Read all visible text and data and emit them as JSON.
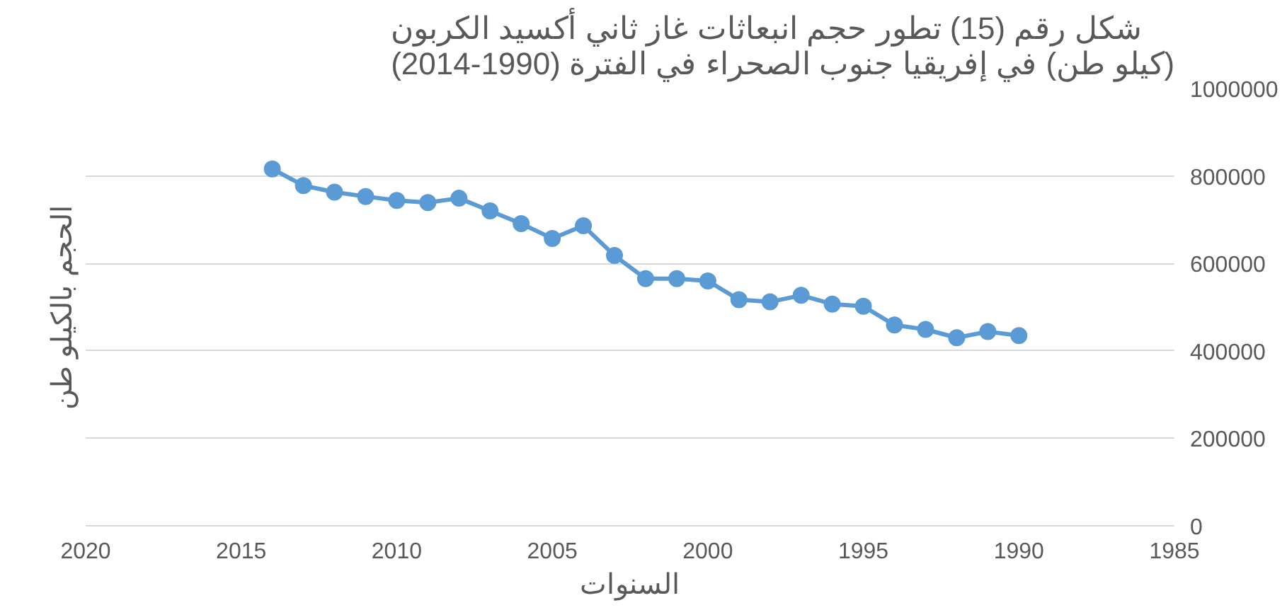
{
  "chart_data": {
    "type": "line",
    "title": "شكل رقم (15) تطور حجم انبعاثات غاز ثاني أكسيد الكربون\n(كيلو طن) في إفريقيا جنوب الصحراء في الفترة (1990-2014)",
    "xlabel": "السنوات",
    "ylabel": "الحجم بالكيلو طن",
    "x": [
      2014,
      2013,
      2012,
      2011,
      2010,
      2009,
      2008,
      2007,
      2006,
      2005,
      2004,
      2003,
      2002,
      2001,
      2000,
      1999,
      1998,
      1997,
      1996,
      1995,
      1994,
      1993,
      1992,
      1991,
      1990
    ],
    "series": [
      {
        "color": "#5b9bd5",
        "values": [
          816000,
          778000,
          763000,
          753000,
          744000,
          739000,
          749000,
          720000,
          691000,
          657000,
          686000,
          618000,
          565000,
          565000,
          560000,
          517000,
          512000,
          527000,
          507000,
          502000,
          459000,
          449000,
          430000,
          444000,
          435000
        ]
      }
    ],
    "xlim": [
      2020,
      1985
    ],
    "xticks": [
      2020,
      2015,
      2010,
      2005,
      2000,
      1995,
      1990,
      1985
    ],
    "ylim": [
      0,
      1000000
    ],
    "yticks": [
      0,
      200000,
      400000,
      600000,
      800000,
      1000000
    ],
    "grid": "y",
    "marker": "circle",
    "line_style": "solid"
  }
}
